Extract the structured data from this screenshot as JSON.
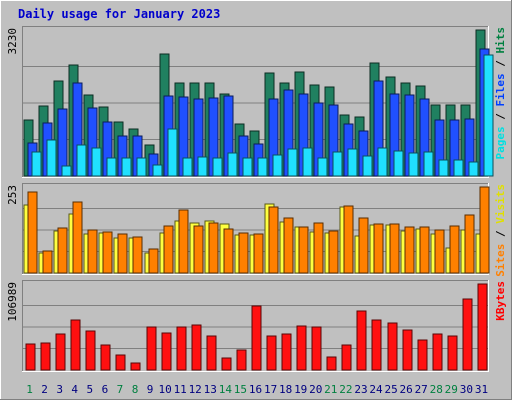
{
  "chart_data": {
    "type": "bar",
    "title": "Daily usage for January 2023",
    "categories": [
      "1",
      "2",
      "3",
      "4",
      "5",
      "6",
      "7",
      "8",
      "9",
      "10",
      "11",
      "12",
      "13",
      "14",
      "15",
      "16",
      "17",
      "18",
      "19",
      "20",
      "21",
      "22",
      "23",
      "24",
      "25",
      "26",
      "27",
      "28",
      "29",
      "30",
      "31"
    ],
    "weekend_days": [
      1,
      7,
      8,
      14,
      15,
      21,
      22,
      28,
      29
    ],
    "panels": [
      {
        "id": "hits-files-pages",
        "ymax_label": "3230",
        "ymax": 3230,
        "side_label": [
          "Pages",
          " / ",
          "Files",
          " / ",
          "Hits"
        ],
        "side_colors": [
          "#00e0e0",
          "#000000",
          "#0040ff",
          "#000000",
          "#008040"
        ],
        "series": [
          {
            "name": "Hits",
            "color": "#208060",
            "values": [
              1230,
              1540,
              2100,
              2460,
              1800,
              1530,
              1200,
              1050,
              680,
              2700,
              2060,
              2060,
              2060,
              1820,
              1160,
              1000,
              2280,
              2060,
              2300,
              2020,
              1970,
              1360,
              1300,
              2500,
              2200,
              2060,
              2000,
              1560,
              1560,
              1580,
              3230
            ]
          },
          {
            "name": "Files",
            "color": "#2050ff",
            "values": [
              730,
              1170,
              1490,
              2060,
              1500,
              1190,
              890,
              880,
              480,
              1760,
              1750,
              1700,
              1730,
              1780,
              890,
              700,
              1700,
              1910,
              1810,
              1620,
              1580,
              1160,
              1000,
              2100,
              1810,
              1800,
              1700,
              1230,
              1230,
              1250,
              2800
            ]
          },
          {
            "name": "Pages",
            "color": "#20e0ff",
            "values": [
              520,
              790,
              220,
              680,
              630,
              400,
              400,
              400,
              250,
              1050,
              400,
              420,
              400,
              500,
              400,
              400,
              470,
              600,
              630,
              400,
              530,
              600,
              450,
              620,
              550,
              500,
              540,
              350,
              360,
              320,
              2680
            ]
          }
        ]
      },
      {
        "id": "visits-sites",
        "ymax_label": "253",
        "ymax": 253,
        "side_label": [
          "Sites",
          " / ",
          "Visits"
        ],
        "side_colors": [
          "#ff8000",
          "#000000",
          "#e0e000"
        ],
        "series": [
          {
            "name": "Visits",
            "color": "#ffff40",
            "values": [
              200,
              58,
              124,
              173,
              114,
              119,
              104,
              102,
              59,
              118,
              153,
              148,
              153,
              145,
              113,
              113,
              202,
              150,
              136,
              121,
              119,
              193,
              110,
              140,
              140,
              125,
              130,
              114,
              75,
              126,
              116
            ]
          },
          {
            "name": "Sites",
            "color": "#ff8000",
            "values": [
              238,
              64,
              132,
              210,
              126,
              120,
              114,
              106,
              72,
              139,
              186,
              138,
              146,
              128,
              118,
              116,
              194,
              161,
              135,
              147,
              124,
              198,
              162,
              144,
              144,
              135,
              135,
              126,
              138,
              170,
              253
            ]
          }
        ]
      },
      {
        "id": "kbytes",
        "ymax_label": "106989",
        "ymax": 106989,
        "side_label": [
          "KBytes"
        ],
        "side_colors": [
          "#ff0000"
        ],
        "series": [
          {
            "name": "KBytes",
            "color": "#ff1010",
            "values": [
              32000,
              33000,
              45000,
              62000,
              48000,
              31000,
              19000,
              9000,
              54000,
              46000,
              54000,
              56000,
              42000,
              15000,
              25000,
              80000,
              42000,
              45000,
              55000,
              53000,
              16000,
              31000,
              73000,
              62000,
              59000,
              50000,
              37000,
              45000,
              42000,
              88000,
              106989
            ]
          }
        ]
      }
    ],
    "grid": true
  }
}
